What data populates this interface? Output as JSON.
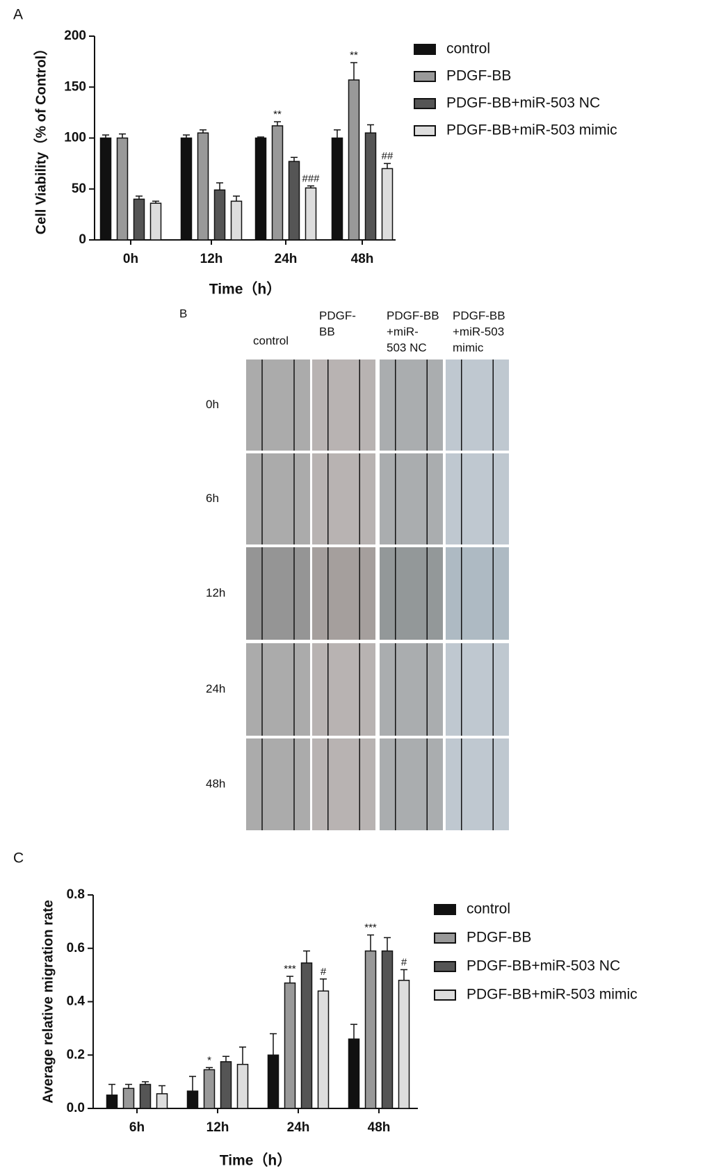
{
  "panel_labels": [
    "A",
    "B",
    "C"
  ],
  "chart_data": [
    {
      "type": "bar",
      "xlabel": "Time（h）",
      "ylabel": "Cell Viability（% of Control）",
      "categories": [
        "0h",
        "12h",
        "24h",
        "48h"
      ],
      "series": [
        {
          "name": "control",
          "color": "#111111",
          "values": [
            100,
            100,
            100,
            100
          ],
          "errors": [
            3,
            3,
            1,
            8
          ],
          "annotations": [
            null,
            null,
            null,
            null
          ]
        },
        {
          "name": "PDGF-BB",
          "color": "#999999",
          "values": [
            100,
            105,
            112,
            157
          ],
          "errors": [
            4,
            3,
            4,
            17
          ],
          "annotations": [
            null,
            null,
            "**",
            "**"
          ]
        },
        {
          "name": "PDGF-BB+miR-503 NC",
          "color": "#555555",
          "values": [
            40,
            49,
            77,
            105
          ],
          "errors": [
            3,
            7,
            4,
            8
          ],
          "annotations": [
            null,
            null,
            null,
            null
          ]
        },
        {
          "name": "PDGF-BB+miR-503 mimic",
          "color": "#dddddd",
          "values": [
            36,
            38,
            51,
            70
          ],
          "errors": [
            2,
            5,
            2,
            5
          ],
          "annotations": [
            null,
            null,
            "###",
            "##"
          ]
        }
      ],
      "ylim": [
        0,
        200
      ],
      "yticks": [
        0,
        50,
        100,
        150,
        200
      ]
    },
    {
      "type": "bar",
      "xlabel": "Time（h）",
      "ylabel": "Average relative migration rate",
      "categories": [
        "6h",
        "12h",
        "24h",
        "48h"
      ],
      "series": [
        {
          "name": "control",
          "color": "#111111",
          "values": [
            0.05,
            0.065,
            0.2,
            0.26
          ],
          "errors": [
            0.04,
            0.055,
            0.08,
            0.055
          ],
          "annotations": [
            null,
            null,
            null,
            null
          ]
        },
        {
          "name": "PDGF-BB",
          "color": "#999999",
          "values": [
            0.075,
            0.145,
            0.47,
            0.59
          ],
          "errors": [
            0.015,
            0.008,
            0.025,
            0.06
          ],
          "annotations": [
            null,
            "*",
            "***",
            "***"
          ]
        },
        {
          "name": "PDGF-BB+miR-503 NC",
          "color": "#555555",
          "values": [
            0.09,
            0.175,
            0.545,
            0.59
          ],
          "errors": [
            0.01,
            0.02,
            0.045,
            0.05
          ],
          "annotations": [
            null,
            null,
            null,
            null
          ]
        },
        {
          "name": "PDGF-BB+miR-503 mimic",
          "color": "#dddddd",
          "values": [
            0.055,
            0.165,
            0.44,
            0.48
          ],
          "errors": [
            0.03,
            0.065,
            0.045,
            0.04
          ],
          "annotations": [
            null,
            null,
            "#",
            "#"
          ]
        }
      ],
      "ylim": [
        0,
        0.8
      ],
      "yticks": [
        {
          "value": 0,
          "label": "0.0"
        },
        0.2,
        0.4,
        0.6,
        0.8
      ]
    }
  ],
  "migration_images": {
    "columns": [
      [
        "control"
      ],
      [
        "PDGF-",
        "BB"
      ],
      [
        "PDGF-BB",
        "+miR-",
        "503 NC"
      ],
      [
        "PDGF-BB",
        "+miR-503",
        "mimic"
      ]
    ],
    "rows": [
      "0h",
      "6h",
      "12h",
      "24h",
      "48h"
    ]
  }
}
